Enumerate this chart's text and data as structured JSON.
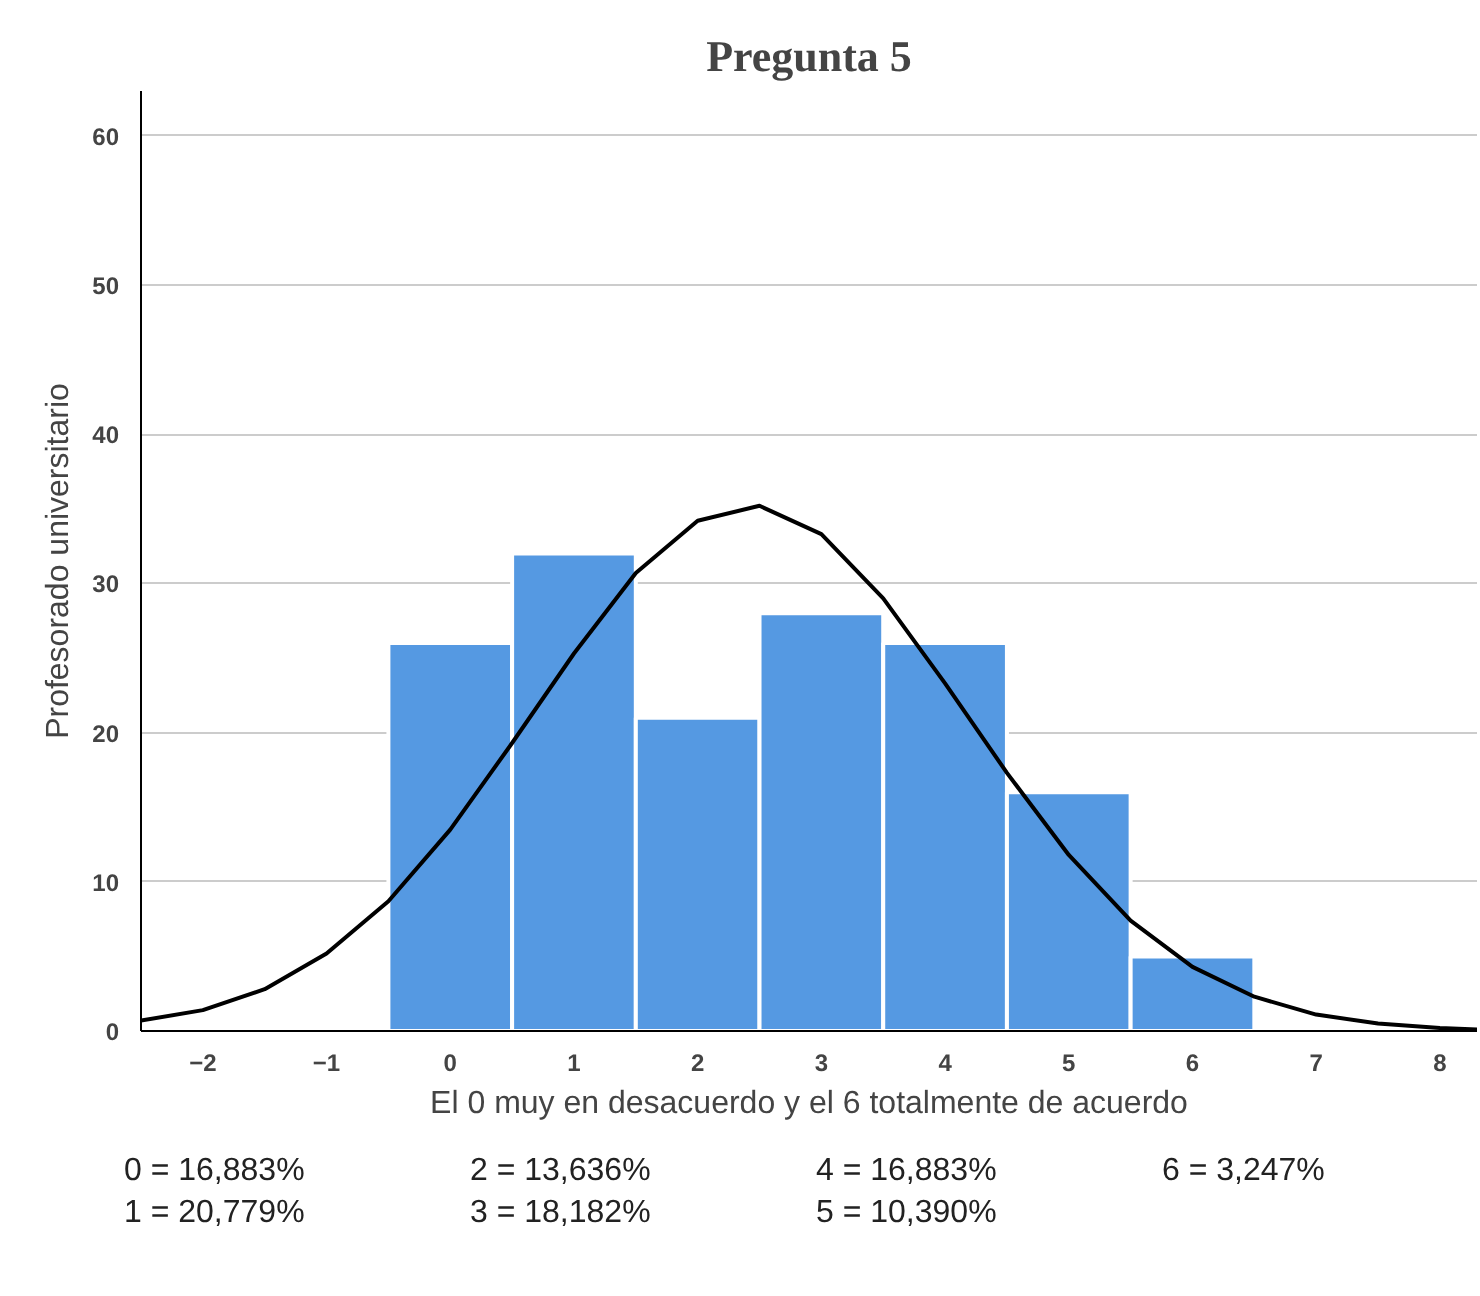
{
  "chart_data": {
    "type": "histogram",
    "title": "Pregunta 5",
    "xlabel": "El 0 muy en desacuerdo y el 6 totalmente de acuerdo",
    "ylabel": "Profesorado universitario",
    "bins": [
      -0.5,
      0.5,
      1.5,
      2.5,
      3.5,
      4.5,
      5.5,
      6.5
    ],
    "values": [
      26,
      32,
      21,
      28,
      26,
      16,
      5
    ],
    "color": "#5599e2",
    "series": [
      {
        "type": "line",
        "color": "#000000",
        "x": [
          -2.5,
          -2,
          -1.5,
          -1,
          -0.5,
          0,
          0.5,
          1,
          1.5,
          2,
          2.5,
          3,
          3.5,
          4,
          4.5,
          5,
          5.5,
          6,
          6.5,
          7,
          7.5,
          8,
          8.3
        ],
        "values": [
          0.7,
          1.4,
          2.8,
          5.2,
          8.7,
          13.5,
          19.3,
          25.3,
          30.7,
          34.2,
          35.2,
          33.3,
          29,
          23.3,
          17.3,
          11.8,
          7.4,
          4.3,
          2.3,
          1.1,
          0.5,
          0.2,
          0.1
        ]
      }
    ],
    "xlim": [
      -2.5,
      8.3
    ],
    "ylim": [
      0,
      63
    ],
    "xticks": [
      -2,
      -1,
      0,
      1,
      2,
      3,
      4,
      5,
      6,
      7,
      8
    ],
    "yticks": [
      0,
      10,
      20,
      30,
      40,
      50,
      60
    ],
    "grid": "y",
    "annotations": [
      "0 = 16,883%",
      "2 = 13,636%",
      "4 = 16,883%",
      "6 = 3,247%",
      "1 = 20,779%",
      "3 = 18,182%",
      "5 = 10,390%"
    ]
  }
}
